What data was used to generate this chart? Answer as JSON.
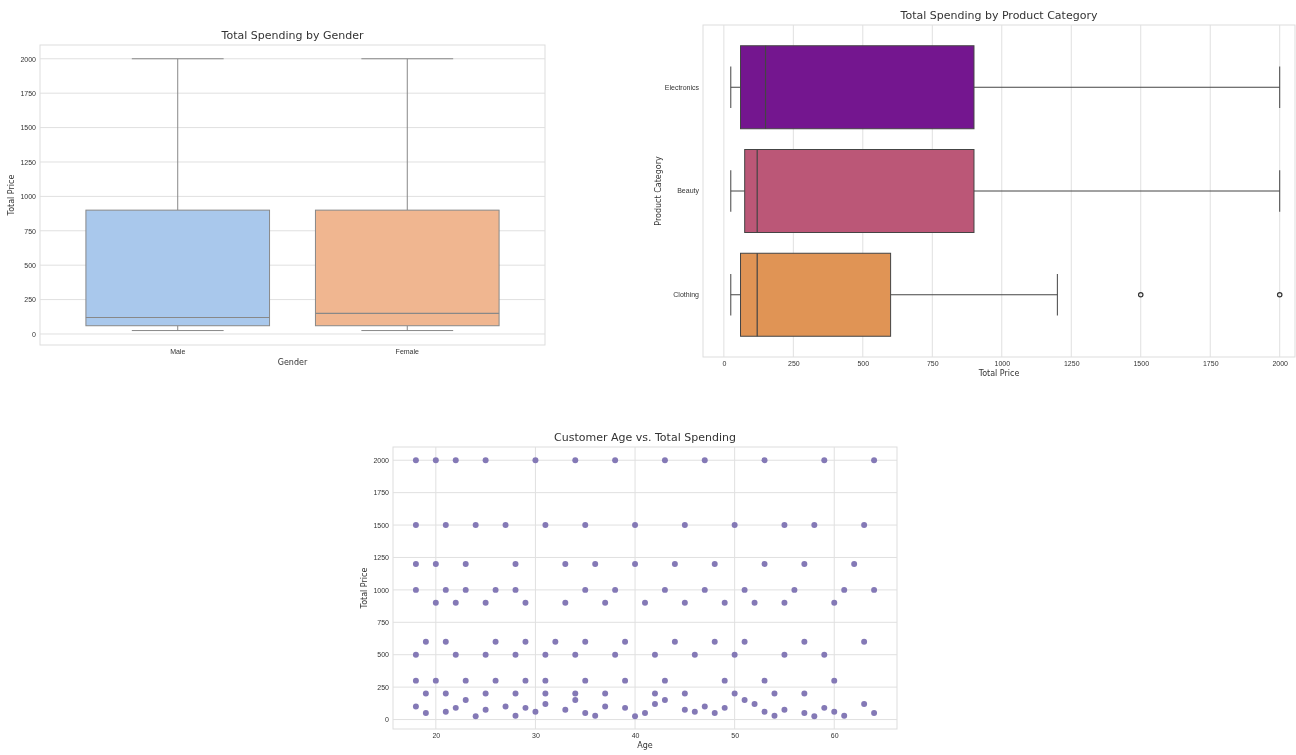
{
  "chart_data": [
    {
      "type": "box",
      "title": "Total Spending by Gender",
      "xlabel": "Gender",
      "ylabel": "Total Price",
      "categories": [
        "Male",
        "Female"
      ],
      "colors": [
        "#a9c8ec",
        "#f0b690"
      ],
      "boxes": [
        {
          "low": 25,
          "q1": 60,
          "median": 120,
          "q3": 900,
          "high": 2000
        },
        {
          "low": 25,
          "q1": 60,
          "median": 150,
          "q3": 900,
          "high": 2000
        }
      ],
      "ylim": [
        -80,
        2100
      ],
      "yticks": [
        0,
        250,
        500,
        750,
        1000,
        1250,
        1500,
        1750,
        2000
      ],
      "grid": "y"
    },
    {
      "type": "box",
      "orientation": "horizontal",
      "title": "Total Spending by Product Category",
      "xlabel": "Total Price",
      "ylabel": "Product Category",
      "categories": [
        "Electronics",
        "Beauty",
        "Clothing"
      ],
      "colors": [
        "#74168f",
        "#bb5777",
        "#e09455"
      ],
      "boxes": [
        {
          "low": 25,
          "q1": 60,
          "median": 150,
          "q3": 900,
          "high": 2000
        },
        {
          "low": 25,
          "q1": 75,
          "median": 120,
          "q3": 900,
          "high": 2000
        },
        {
          "low": 25,
          "q1": 60,
          "median": 120,
          "q3": 600,
          "high": 1200,
          "outliers": [
            1500,
            2000
          ]
        }
      ],
      "xlim": [
        -75,
        2055
      ],
      "xticks": [
        0,
        250,
        500,
        750,
        1000,
        1250,
        1500,
        1750,
        2000
      ],
      "grid": "x"
    },
    {
      "type": "scatter",
      "title": "Customer Age vs. Total Spending",
      "xlabel": "Age",
      "ylabel": "Total Price",
      "marker": "circle",
      "grid": true,
      "xlim": [
        15.7,
        66.3
      ],
      "xticks": [
        20,
        30,
        40,
        50,
        60
      ],
      "ylim": [
        -73,
        2102
      ],
      "yticks": [
        0,
        250,
        500,
        750,
        1000,
        1250,
        1500,
        1750,
        2000
      ],
      "x": [
        18,
        20,
        22,
        25,
        30,
        34,
        38,
        43,
        47,
        53,
        59,
        64,
        18,
        21,
        24,
        27,
        31,
        35,
        40,
        45,
        50,
        55,
        58,
        63,
        18,
        20,
        23,
        28,
        33,
        36,
        40,
        44,
        48,
        53,
        57,
        62,
        18,
        21,
        23,
        26,
        28,
        35,
        38,
        43,
        47,
        51,
        56,
        61,
        64,
        20,
        22,
        25,
        29,
        33,
        37,
        41,
        45,
        49,
        52,
        55,
        60,
        19,
        21,
        26,
        29,
        32,
        35,
        39,
        44,
        48,
        51,
        57,
        63,
        18,
        22,
        25,
        28,
        31,
        34,
        38,
        42,
        46,
        50,
        55,
        59,
        18,
        20,
        23,
        26,
        29,
        31,
        35,
        39,
        43,
        49,
        53,
        60,
        19,
        21,
        25,
        28,
        31,
        34,
        37,
        42,
        45,
        50,
        54,
        57,
        18,
        19,
        21,
        22,
        23,
        24,
        25,
        27,
        28,
        29,
        30,
        31,
        33,
        34,
        35,
        36,
        37,
        39,
        40,
        41,
        42,
        43,
        45,
        46,
        47,
        48,
        49,
        51,
        52,
        53,
        54,
        55,
        57,
        58,
        59,
        60,
        61,
        63,
        64
      ],
      "series": [
        {
          "color": "#8479b6",
          "values": [
            2000,
            2000,
            2000,
            2000,
            2000,
            2000,
            2000,
            2000,
            2000,
            2000,
            2000,
            2000,
            1500,
            1500,
            1500,
            1500,
            1500,
            1500,
            1500,
            1500,
            1500,
            1500,
            1500,
            1500,
            1200,
            1200,
            1200,
            1200,
            1200,
            1200,
            1200,
            1200,
            1200,
            1200,
            1200,
            1200,
            1000,
            1000,
            1000,
            1000,
            1000,
            1000,
            1000,
            1000,
            1000,
            1000,
            1000,
            1000,
            1000,
            900,
            900,
            900,
            900,
            900,
            900,
            900,
            900,
            900,
            900,
            900,
            900,
            600,
            600,
            600,
            600,
            600,
            600,
            600,
            600,
            600,
            600,
            600,
            600,
            500,
            500,
            500,
            500,
            500,
            500,
            500,
            500,
            500,
            500,
            500,
            500,
            300,
            300,
            300,
            300,
            300,
            300,
            300,
            300,
            300,
            300,
            300,
            300,
            200,
            200,
            200,
            200,
            200,
            200,
            200,
            200,
            200,
            200,
            200,
            200,
            100,
            50,
            60,
            90,
            150,
            25,
            75,
            100,
            30,
            90,
            60,
            120,
            75,
            150,
            50,
            30,
            100,
            90,
            25,
            50,
            120,
            150,
            75,
            60,
            100,
            50,
            90,
            150,
            120,
            60,
            30,
            75,
            50,
            25,
            90,
            60,
            30,
            120,
            50
          ]
        }
      ]
    }
  ]
}
